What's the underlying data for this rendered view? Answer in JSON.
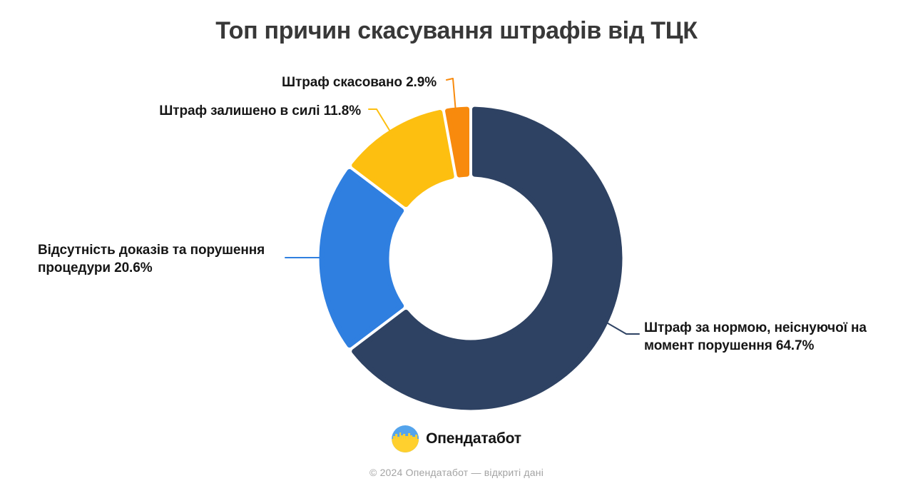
{
  "chart_data": {
    "type": "donut",
    "title": "Топ причин скасування штрафів від ТЦК",
    "unit": "%",
    "direction": "clockwise",
    "start_angle_deg": 0,
    "inner_radius_ratio": 0.565,
    "legend": "none",
    "series": [
      {
        "label": "Штраф за нормою, неіснуючої на момент порушення",
        "value": 64.7,
        "color": "#2e4263",
        "callout": "Штраф за нормою, неіснуючої на\nмомент порушення 64.7%"
      },
      {
        "label": "Відсутність доказів та порушення процедури",
        "value": 20.6,
        "color": "#2f7fe0",
        "callout": "Відсутність доказів та порушення\nпроцедури 20.6%"
      },
      {
        "label": "Штраф залишено в силі",
        "value": 11.8,
        "color": "#fdbf10",
        "callout": "Штраф залишено в силі 11.8%"
      },
      {
        "label": "Штраф скасовано",
        "value": 2.9,
        "color": "#f88a0d",
        "callout": "Штраф скасовано 2.9%"
      }
    ]
  },
  "footer": {
    "brand": "Опендатабот",
    "copyright": "© 2024 Опендатабот — відкриті дані",
    "logo_colors": {
      "blue": "#54a4ec",
      "yellow": "#ffd02e"
    }
  },
  "colors": {
    "background": "#ffffff",
    "title_text": "#383838",
    "label_text": "#161616",
    "copyright_text": "#a3a3a3"
  }
}
